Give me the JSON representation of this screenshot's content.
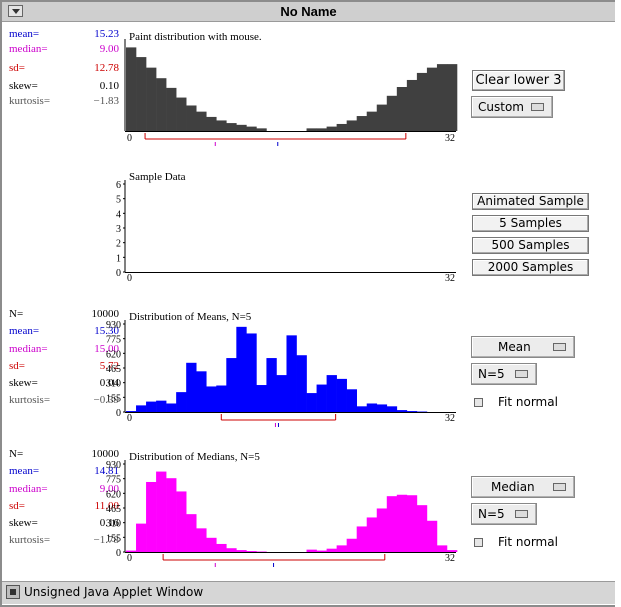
{
  "window": {
    "title": "No Name",
    "status_text": "Unsigned Java Applet Window"
  },
  "colors": {
    "population": "#404040",
    "means": "#0000ff",
    "medians": "#ff00ff",
    "range_marker": "#cc0000",
    "mean_tick": "#0000cc",
    "median_tick": "#cc00cc"
  },
  "icons": {
    "window_menu": "triangle-down-icon",
    "status": "applet-icon",
    "choice": "choice-indicator-icon"
  },
  "population_stats": {
    "mean_label": "mean=",
    "mean": "15.23",
    "median_label": "median=",
    "median": "9.00",
    "sd_label": "sd=",
    "sd": "12.78",
    "skew_label": "skew=",
    "skew": "0.10",
    "kurtosis_label": "kurtosis=",
    "kurtosis": "−1.83"
  },
  "means_stats": {
    "n_label": "N=",
    "n": "10000",
    "mean_label": "mean=",
    "mean": "15.30",
    "median_label": "median=",
    "median": "15.00",
    "sd_label": "sd=",
    "sd": "5.72",
    "skew_label": "skew=",
    "skew": "0.04",
    "kurtosis_label": "kurtosis=",
    "kurtosis": "−0.39"
  },
  "medians_stats": {
    "n_label": "N=",
    "n": "10000",
    "mean_label": "mean=",
    "mean": "14.81",
    "median_label": "median=",
    "median": "9.00",
    "sd_label": "sd=",
    "sd": "11.00",
    "skew_label": "skew=",
    "skew": "0.16",
    "kurtosis_label": "kurtosis=",
    "kurtosis": "−1.78"
  },
  "controls": {
    "clear_lower": "Clear lower 3",
    "population_shape": "Custom",
    "animated_sample": "Animated Sample",
    "samples_5": "5 Samples",
    "samples_500": "500 Samples",
    "samples_2000": "2000 Samples",
    "stat1": "Mean",
    "n1": "N=5",
    "fit1": "Fit normal",
    "stat2": "Median",
    "n2": "N=5",
    "fit2": "Fit normal"
  },
  "chart_data": [
    {
      "type": "bar",
      "title": "Paint distribution with mouse.",
      "x_tick_labels": [
        "0",
        "32"
      ],
      "xlim": [
        0,
        32
      ],
      "values": [
        0.95,
        0.84,
        0.72,
        0.6,
        0.49,
        0.38,
        0.29,
        0.22,
        0.16,
        0.12,
        0.09,
        0.07,
        0.05,
        0.03,
        0,
        0,
        0,
        0,
        0.03,
        0.03,
        0.05,
        0.08,
        0.12,
        0.17,
        0.22,
        0.3,
        0.4,
        0.5,
        0.58,
        0.66,
        0.72,
        0.76,
        0.76
      ],
      "range_marker": [
        2,
        28
      ],
      "mean_marker": 15.23,
      "median_marker": 9.0
    },
    {
      "type": "bar",
      "title": "Sample Data",
      "y_ticks": [
        0,
        1,
        2,
        3,
        4,
        5,
        6
      ],
      "x_tick_labels": [
        "0",
        "32"
      ],
      "xlim": [
        0,
        32
      ],
      "values": []
    },
    {
      "type": "bar",
      "title": "Distribution of Means, N=5",
      "y_ticks": [
        0,
        155,
        310,
        465,
        620,
        775,
        930
      ],
      "x_tick_labels": [
        "0",
        "32"
      ],
      "xlim": [
        0,
        32
      ],
      "values": [
        10,
        70,
        110,
        120,
        90,
        210,
        520,
        430,
        270,
        280,
        570,
        900,
        830,
        285,
        570,
        390,
        810,
        600,
        200,
        290,
        390,
        350,
        240,
        60,
        90,
        80,
        60,
        20,
        10,
        5,
        0,
        0,
        0
      ],
      "range_marker": [
        9.6,
        21
      ],
      "mean_marker": 15.3,
      "median_marker": 15.0
    },
    {
      "type": "bar",
      "title": "Distribution of Medians, N=5",
      "y_ticks": [
        0,
        155,
        310,
        465,
        620,
        775,
        930
      ],
      "x_tick_labels": [
        "0",
        "32"
      ],
      "xlim": [
        0,
        32
      ],
      "values": [
        15,
        300,
        740,
        850,
        780,
        640,
        400,
        250,
        150,
        85,
        40,
        20,
        10,
        5,
        0,
        0,
        0,
        0,
        25,
        15,
        35,
        70,
        140,
        270,
        365,
        460,
        590,
        605,
        600,
        495,
        330,
        70,
        20
      ],
      "range_marker": [
        3.8,
        25.9
      ],
      "mean_marker": 14.81,
      "median_marker": 9.0
    }
  ]
}
